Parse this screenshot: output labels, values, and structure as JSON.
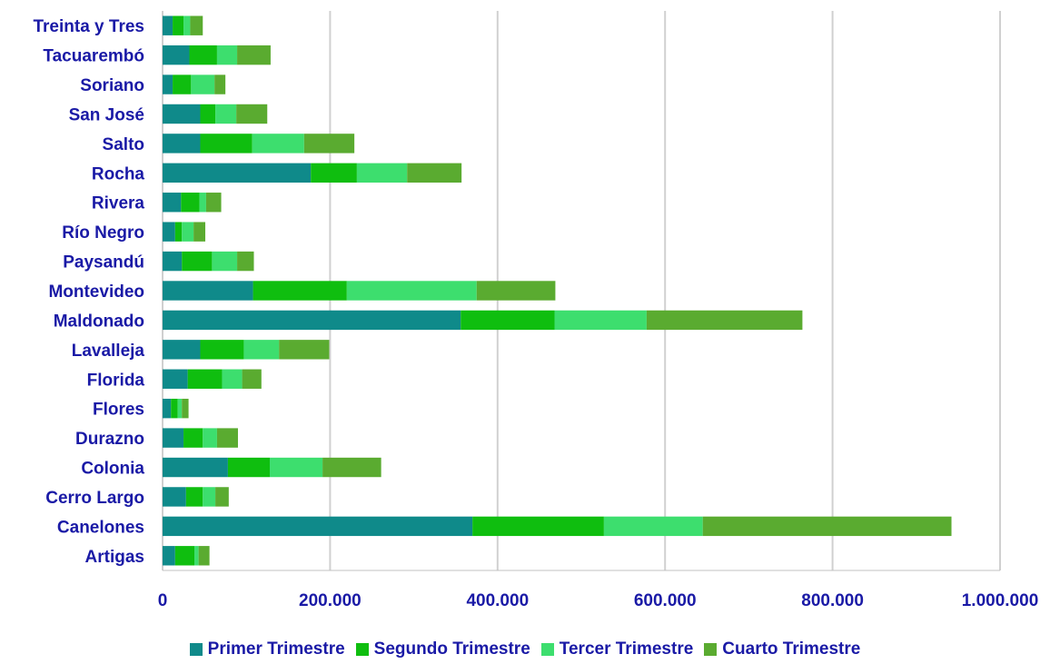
{
  "chart_data": {
    "type": "bar",
    "orientation": "horizontal",
    "stacked": true,
    "categories": [
      "Treinta y Tres",
      "Tacuarembó",
      "Soriano",
      "San José",
      "Salto",
      "Rocha",
      "Rivera",
      "Río Negro",
      "Paysandú",
      "Montevideo",
      "Maldonado",
      "Lavalleja",
      "Florida",
      "Flores",
      "Durazno",
      "Colonia",
      "Cerro Largo",
      "Canelones",
      "Artigas"
    ],
    "series": [
      {
        "name": "Primer Trimestre",
        "color": "#0f8a8a",
        "values": [
          12000,
          32000,
          12000,
          45000,
          45000,
          177000,
          22000,
          15000,
          23000,
          108000,
          356000,
          45000,
          30000,
          10000,
          25000,
          78000,
          28000,
          370000,
          15000
        ]
      },
      {
        "name": "Segundo Trimestre",
        "color": "#0fbe0f",
        "values": [
          13000,
          33000,
          22000,
          18000,
          62000,
          55000,
          22000,
          8000,
          36000,
          112000,
          112000,
          52000,
          41000,
          8000,
          23000,
          50000,
          20000,
          157000,
          23000
        ]
      },
      {
        "name": "Tercer Trimestre",
        "color": "#3dde6e",
        "values": [
          8000,
          24000,
          28000,
          25000,
          62000,
          60000,
          8000,
          14000,
          30000,
          155000,
          110000,
          42000,
          24000,
          5000,
          17000,
          63000,
          15000,
          118000,
          5000
        ]
      },
      {
        "name": "Cuarto Trimestre",
        "color": "#5aab30",
        "values": [
          15000,
          40000,
          13000,
          37000,
          60000,
          65000,
          18000,
          14000,
          20000,
          94000,
          186000,
          60000,
          23000,
          8000,
          25000,
          70000,
          16000,
          297000,
          13000
        ]
      }
    ],
    "xlim": [
      0,
      1000000
    ],
    "xticks": [
      0,
      200000,
      400000,
      600000,
      800000,
      1000000
    ],
    "xtick_labels": [
      "0",
      "200.000",
      "400.000",
      "600.000",
      "800.000",
      "1.000.000"
    ],
    "grid": "vertical",
    "legend": "bottom",
    "label_color": "#1a1aa6",
    "gridline_color": "#d0d0d0"
  }
}
